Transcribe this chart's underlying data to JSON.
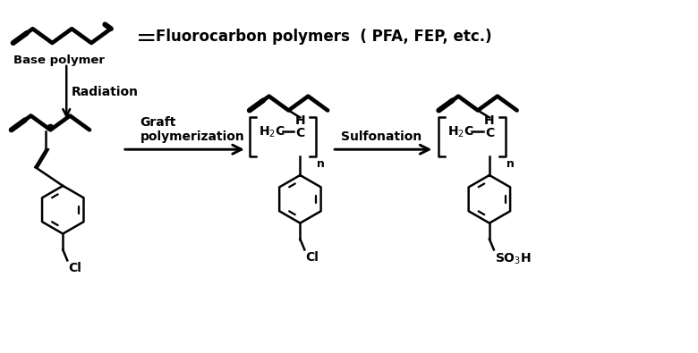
{
  "bg_color": "#ffffff",
  "line_color": "#000000",
  "text_color": "#000000",
  "title_text": "Fluorocarbon polymers  ( PFA, FEP, etc.)",
  "base_polymer_label": "Base polymer",
  "radiation_label": "Radiation",
  "graft_label": "Graft\npolymerization",
  "sulfonation_label": "Sulfonation",
  "cl_label": "Cl",
  "so3h_label": "SO$_3$H",
  "fig_width": 7.8,
  "fig_height": 3.95,
  "dpi": 100
}
